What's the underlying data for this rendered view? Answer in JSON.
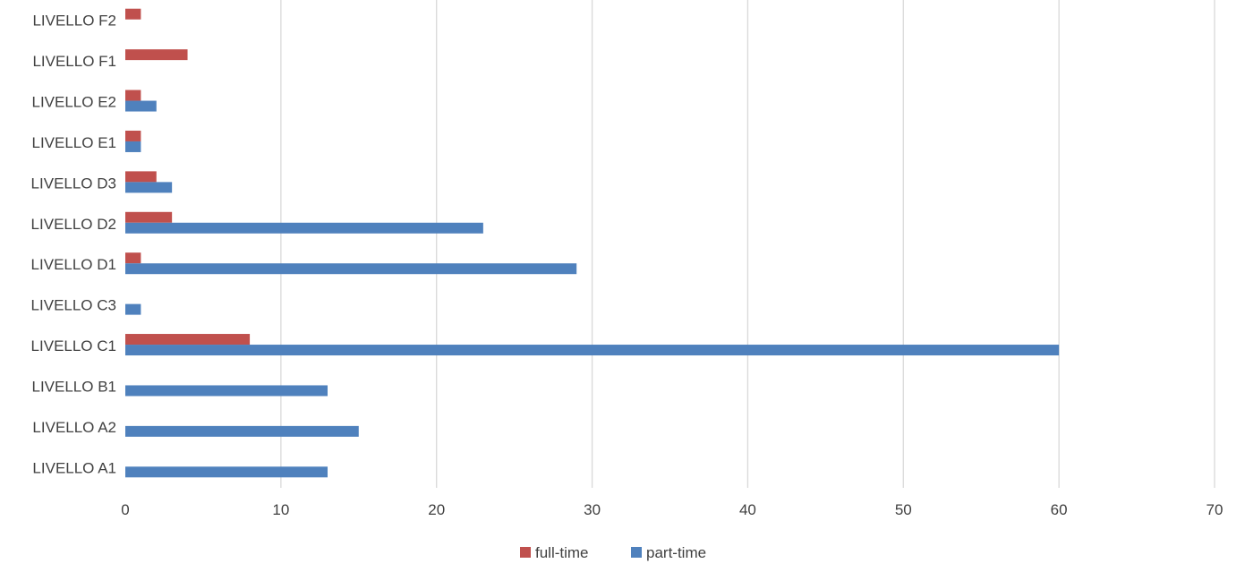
{
  "chart_data": {
    "type": "bar",
    "orientation": "horizontal",
    "categories": [
      "LIVELLO A1",
      "LIVELLO A2",
      "LIVELLO B1",
      "LIVELLO C1",
      "LIVELLO C3",
      "LIVELLO D1",
      "LIVELLO D2",
      "LIVELLO D3",
      "LIVELLO E1",
      "LIVELLO E2",
      "LIVELLO F1",
      "LIVELLO F2"
    ],
    "series": [
      {
        "name": "full-time",
        "color": "#c0504d",
        "values": [
          0,
          0,
          0,
          8,
          0,
          1,
          3,
          2,
          1,
          1,
          4,
          1
        ]
      },
      {
        "name": "part-time",
        "color": "#4f81bd",
        "values": [
          13,
          15,
          13,
          60,
          1,
          29,
          23,
          3,
          1,
          2,
          0,
          0
        ]
      }
    ],
    "xlim": [
      0,
      70
    ],
    "xticks": [
      0,
      10,
      20,
      30,
      40,
      50,
      60,
      70
    ],
    "grid": "vertical",
    "legend": "bottom-center",
    "title": "",
    "xlabel": "",
    "ylabel": ""
  }
}
